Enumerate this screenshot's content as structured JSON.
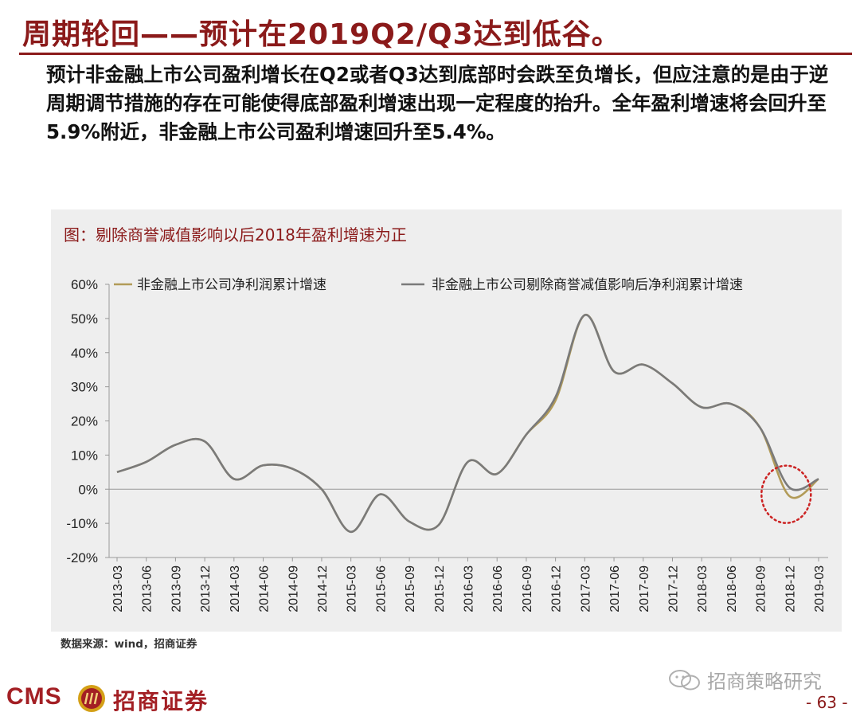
{
  "slide": {
    "title": "周期轮回——预计在2019Q2/Q3达到低谷。",
    "body": "预计非金融上市公司盈利增长在Q2或者Q3达到底部时会跌至负增长，但应注意的是由于逆周期调节措施的存在可能使得底部盈利增速出现一定程度的抬升。全年盈利增速将会回升至5.9%附近，非金融上市公司盈利增速回升至5.4%。",
    "chart_caption": "图：剔除商誉减值影响以后2018年盈利增速为正",
    "source": "数据来源：wind，招商证券",
    "brand_latin": "CMS",
    "brand_cn": "招商证券",
    "watermark": "招商策略研究",
    "page_number": "- 63 -"
  },
  "colors": {
    "title": "#8b1a1a",
    "series_1": "#b29b58",
    "series_2": "#7a7a7a",
    "highlight_circle": "#cc2222",
    "panel": "#eeeeee"
  },
  "icons": {
    "logo": "cms-sun-logo",
    "watermark": "wechat-icon"
  },
  "chart_data": {
    "type": "line",
    "title": "",
    "xlabel": "",
    "ylabel": "",
    "ylim": [
      -20,
      60
    ],
    "y_ticks": [
      -20,
      -10,
      0,
      10,
      20,
      30,
      40,
      50,
      60
    ],
    "y_tick_labels": [
      "-20%",
      "-10%",
      "0%",
      "10%",
      "20%",
      "30%",
      "40%",
      "50%",
      "60%"
    ],
    "grid": false,
    "legend_position": "top",
    "categories": [
      "2013-03",
      "2013-06",
      "2013-09",
      "2013-12",
      "2014-03",
      "2014-06",
      "2014-09",
      "2014-12",
      "2015-03",
      "2015-06",
      "2015-09",
      "2015-12",
      "2016-03",
      "2016-06",
      "2016-09",
      "2016-12",
      "2017-03",
      "2017-06",
      "2017-09",
      "2017-12",
      "2018-03",
      "2018-06",
      "2018-09",
      "2018-12",
      "2019-03"
    ],
    "series": [
      {
        "name": "非金融上市公司净利润累计增速",
        "values": [
          5,
          8,
          13,
          14,
          3,
          7,
          6,
          0,
          -12.5,
          -1.5,
          -9.5,
          -10.5,
          8,
          4.5,
          16,
          26,
          51,
          34.5,
          36.5,
          31,
          24,
          25,
          18,
          -2,
          3
        ]
      },
      {
        "name": "非金融上市公司剔除商誉减值影响后净利润累计增速",
        "values": [
          5,
          8,
          13,
          14,
          3,
          7,
          6,
          0,
          -12.5,
          -1.5,
          -9.5,
          -10.5,
          8,
          4.5,
          16,
          27,
          51,
          34.5,
          36.5,
          31,
          24,
          25,
          18,
          0.5,
          3
        ]
      }
    ],
    "annotation": "dotted-circle-around-2018-12"
  }
}
